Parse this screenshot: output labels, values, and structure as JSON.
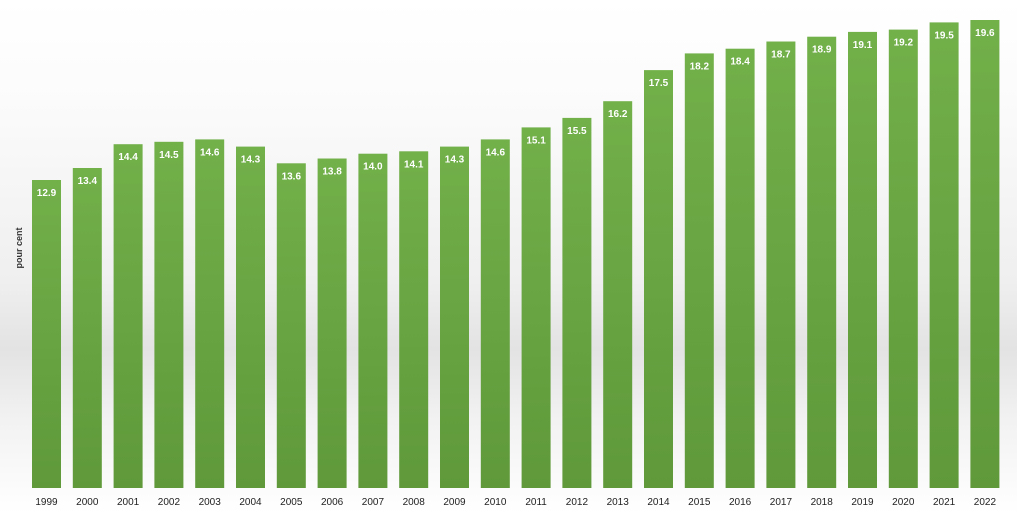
{
  "chart_data": {
    "type": "bar",
    "categories": [
      "1999",
      "2000",
      "2001",
      "2002",
      "2003",
      "2004",
      "2005",
      "2006",
      "2007",
      "2008",
      "2009",
      "2010",
      "2011",
      "2012",
      "2013",
      "2014",
      "2015",
      "2016",
      "2017",
      "2018",
      "2019",
      "2020",
      "2021",
      "2022"
    ],
    "values": [
      12.9,
      13.4,
      14.4,
      14.5,
      14.6,
      14.3,
      13.6,
      13.8,
      14.0,
      14.1,
      14.3,
      14.6,
      15.1,
      15.5,
      16.2,
      17.5,
      18.2,
      18.4,
      18.7,
      18.9,
      19.1,
      19.2,
      19.5,
      19.6
    ],
    "value_labels": [
      "12.9",
      "13.4",
      "14.4",
      "14.5",
      "14.6",
      "14.3",
      "13.6",
      "13.8",
      "14.0",
      "14.1",
      "14.3",
      "14.6",
      "15.1",
      "15.5",
      "16.2",
      "17.5",
      "18.2",
      "18.4",
      "18.7",
      "18.9",
      "19.1",
      "19.2",
      "19.5",
      "19.6"
    ],
    "title": "",
    "xlabel": "",
    "ylabel": "pour cent",
    "ylim": [
      0,
      19.6
    ],
    "grid": false,
    "bar_color_top": "#72b04a",
    "bar_color_bottom": "#5f993a",
    "label_color": "#ffffff"
  }
}
